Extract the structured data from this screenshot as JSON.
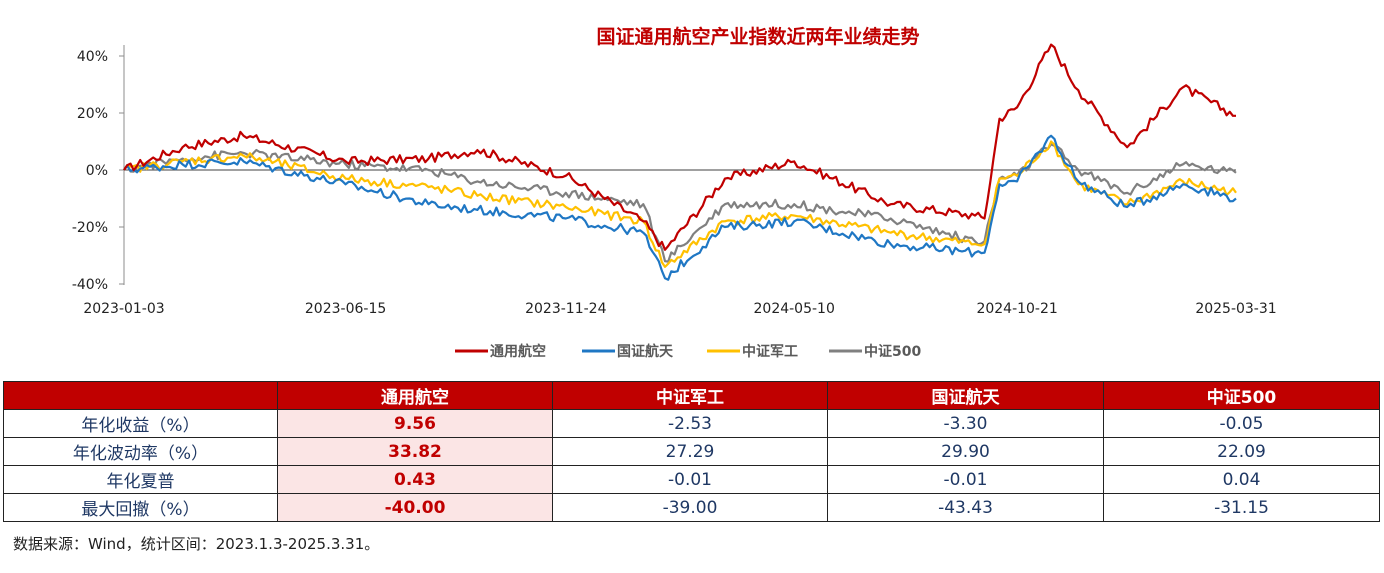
{
  "chart_data": {
    "type": "line",
    "title": "国证通用航空产业指数近两年业绩走势",
    "x_tick_labels": [
      "2023-01-03",
      "2023-06-15",
      "2023-11-24",
      "2024-05-10",
      "2024-10-21",
      "2025-03-31"
    ],
    "y_tick_labels": [
      "40%",
      "20%",
      "0%",
      "-20%",
      "-40%"
    ],
    "ylim": [
      -40,
      45
    ],
    "yunit": "%",
    "legend_position": "bottom-center",
    "x_anchors": [
      "2023-01-03",
      "2023-02-15",
      "2023-04-01",
      "2023-06-15",
      "2023-08-15",
      "2023-09-20",
      "2023-11-24",
      "2024-01-20",
      "2024-02-05",
      "2024-03-20",
      "2024-05-10",
      "2024-07-20",
      "2024-09-20",
      "2024-09-27",
      "2024-10-08",
      "2024-10-21",
      "2024-11-15",
      "2024-12-05",
      "2025-01-10",
      "2025-02-20",
      "2025-03-31"
    ],
    "series": [
      {
        "name": "通用航空",
        "color": "#c00000",
        "values": [
          0,
          8,
          12,
          3,
          4,
          7,
          -2,
          -18,
          -28,
          -3,
          3,
          -12,
          -16,
          -17,
          18,
          22,
          44,
          28,
          8,
          29,
          19
        ]
      },
      {
        "name": "国证航天",
        "color": "#1f77c4",
        "values": [
          0,
          2,
          3,
          -5,
          -12,
          -14,
          -17,
          -22,
          -38,
          -20,
          -18,
          -26,
          -29,
          -29,
          -5,
          -4,
          12,
          -4,
          -13,
          -5,
          -10
        ]
      },
      {
        "name": "中证军工",
        "color": "#ffc000",
        "values": [
          0,
          3,
          5,
          -3,
          -6,
          -9,
          -13,
          -18,
          -34,
          -18,
          -16,
          -22,
          -26,
          -26,
          -3,
          -2,
          10,
          -5,
          -12,
          -4,
          -8
        ]
      },
      {
        "name": "中证500",
        "color": "#808080",
        "values": [
          0,
          4,
          6,
          2,
          0,
          -4,
          -8,
          -12,
          -32,
          -12,
          -12,
          -17,
          -25,
          -25,
          -3,
          -2,
          9,
          0,
          -8,
          2,
          -1
        ]
      }
    ]
  },
  "table": {
    "headers": [
      "",
      "通用航空",
      "中证军工",
      "国证航天",
      "中证500"
    ],
    "rows": [
      {
        "label": "年化收益（%）",
        "values": [
          "9.56",
          "-2.53",
          "-3.30",
          "-0.05"
        ]
      },
      {
        "label": "年化波动率（%）",
        "values": [
          "33.82",
          "27.29",
          "29.90",
          "22.09"
        ]
      },
      {
        "label": "年化夏普",
        "values": [
          "0.43",
          "-0.01",
          "-0.01",
          "0.04"
        ]
      },
      {
        "label": "最大回撤（%）",
        "values": [
          "-40.00",
          "-39.00",
          "-43.43",
          "-31.15"
        ]
      }
    ]
  },
  "footnote": "数据来源：Wind，统计区间：2023.1.3-2025.3.31。"
}
